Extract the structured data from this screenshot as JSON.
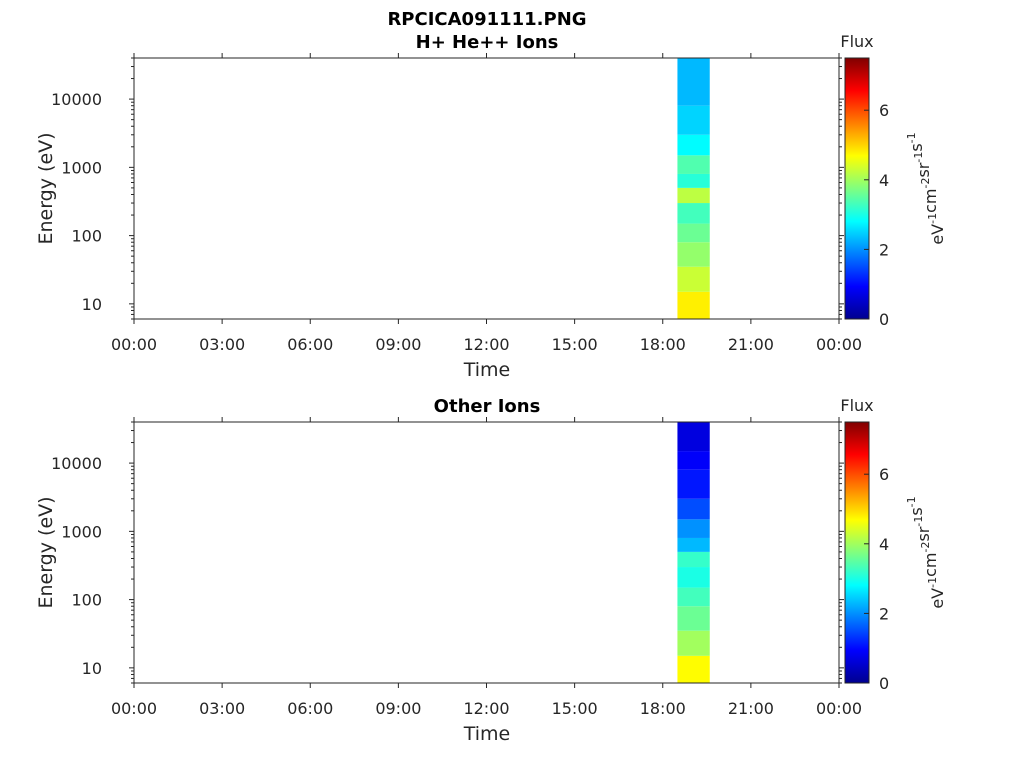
{
  "figure": {
    "title": "RPCICA091111.PNG"
  },
  "colorbar": {
    "title": "Flux",
    "units_base": [
      "eV",
      "cm",
      "sr",
      "s"
    ],
    "units_exp": [
      "-1",
      "-2",
      "-1",
      "-1"
    ],
    "ticks": [
      "0",
      "2",
      "4",
      "6"
    ],
    "range": [
      0,
      7.5
    ],
    "colormap": "jet"
  },
  "chart_data": [
    {
      "type": "heatmap",
      "title": "H+ He++ Ions",
      "xlabel": "Time",
      "ylabel": "Energy (eV)",
      "xticks": [
        "00:00",
        "03:00",
        "06:00",
        "09:00",
        "12:00",
        "15:00",
        "18:00",
        "21:00",
        "00:00"
      ],
      "xlim_hours": [
        0,
        24
      ],
      "yticks": [
        "10",
        "100",
        "1000",
        "10000"
      ],
      "ylim": [
        6,
        40000
      ],
      "yscale": "log",
      "data_time_range_hours": [
        18.5,
        19.6
      ],
      "bands": [
        {
          "e_min": 6,
          "e_max": 15,
          "flux": 4.8
        },
        {
          "e_min": 15,
          "e_max": 35,
          "flux": 4.3
        },
        {
          "e_min": 35,
          "e_max": 80,
          "flux": 3.9
        },
        {
          "e_min": 80,
          "e_max": 150,
          "flux": 3.6
        },
        {
          "e_min": 150,
          "e_max": 300,
          "flux": 3.3
        },
        {
          "e_min": 300,
          "e_max": 500,
          "flux": 4.2
        },
        {
          "e_min": 500,
          "e_max": 800,
          "flux": 3.1
        },
        {
          "e_min": 800,
          "e_max": 1500,
          "flux": 3.4
        },
        {
          "e_min": 1500,
          "e_max": 3000,
          "flux": 2.8
        },
        {
          "e_min": 3000,
          "e_max": 8000,
          "flux": 2.5
        },
        {
          "e_min": 8000,
          "e_max": 40000,
          "flux": 2.3
        }
      ]
    },
    {
      "type": "heatmap",
      "title": "Other Ions",
      "xlabel": "Time",
      "ylabel": "Energy (eV)",
      "xticks": [
        "00:00",
        "03:00",
        "06:00",
        "09:00",
        "12:00",
        "15:00",
        "18:00",
        "21:00",
        "00:00"
      ],
      "xlim_hours": [
        0,
        24
      ],
      "yticks": [
        "10",
        "100",
        "1000",
        "10000"
      ],
      "ylim": [
        6,
        40000
      ],
      "yscale": "log",
      "data_time_range_hours": [
        18.5,
        19.6
      ],
      "bands": [
        {
          "e_min": 6,
          "e_max": 15,
          "flux": 4.7
        },
        {
          "e_min": 15,
          "e_max": 35,
          "flux": 4.0
        },
        {
          "e_min": 35,
          "e_max": 80,
          "flux": 3.6
        },
        {
          "e_min": 80,
          "e_max": 150,
          "flux": 3.3
        },
        {
          "e_min": 150,
          "e_max": 300,
          "flux": 3.0
        },
        {
          "e_min": 300,
          "e_max": 500,
          "flux": 3.2
        },
        {
          "e_min": 500,
          "e_max": 800,
          "flux": 2.3
        },
        {
          "e_min": 800,
          "e_max": 1500,
          "flux": 2.0
        },
        {
          "e_min": 1500,
          "e_max": 3000,
          "flux": 1.5
        },
        {
          "e_min": 3000,
          "e_max": 8000,
          "flux": 1.1
        },
        {
          "e_min": 8000,
          "e_max": 15000,
          "flux": 0.9
        },
        {
          "e_min": 15000,
          "e_max": 40000,
          "flux": 0.7
        }
      ]
    }
  ]
}
